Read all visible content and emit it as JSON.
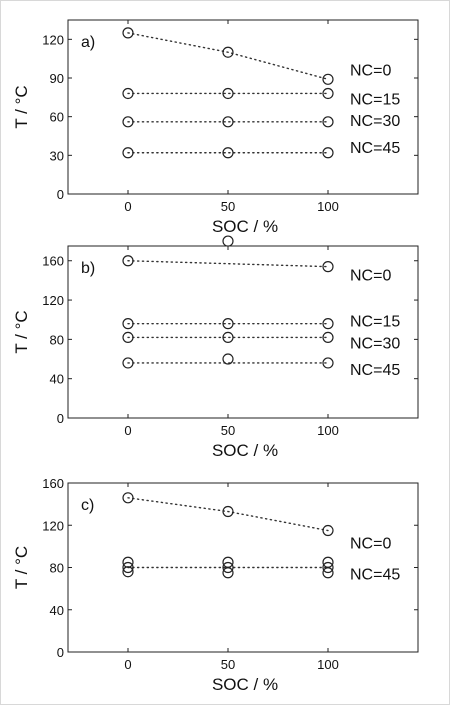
{
  "chart_data": [
    {
      "type": "scatter",
      "panel_label": "a)",
      "xlabel": "SOC / %",
      "ylabel": "T / °C",
      "xticks": [
        0,
        50,
        100
      ],
      "yticks": [
        0,
        30,
        60,
        90,
        120
      ],
      "xlim": [
        -30,
        145
      ],
      "ylim": [
        0,
        135
      ],
      "series": [
        {
          "name": "NC=0",
          "x": [
            0,
            50,
            100
          ],
          "y": [
            125,
            110,
            89
          ]
        },
        {
          "name": "NC=15",
          "x": [
            0,
            50,
            100
          ],
          "y": [
            78,
            78,
            78
          ]
        },
        {
          "name": "NC=30",
          "x": [
            0,
            50,
            100
          ],
          "y": [
            56,
            56,
            56
          ]
        },
        {
          "name": "NC=45",
          "x": [
            0,
            50,
            100
          ],
          "y": [
            32,
            32,
            32
          ]
        }
      ]
    },
    {
      "type": "scatter",
      "panel_label": "b)",
      "xlabel": "SOC / %",
      "ylabel": "T / °C",
      "xticks": [
        0,
        50,
        100
      ],
      "yticks": [
        0,
        40,
        80,
        120,
        160
      ],
      "xlim": [
        -30,
        145
      ],
      "ylim": [
        0,
        175
      ],
      "series": [
        {
          "name": "NC=0",
          "x": [
            0,
            50,
            100
          ],
          "y": [
            160,
            180,
            154
          ],
          "line_y": [
            160,
            157,
            154
          ]
        },
        {
          "name": "NC=15",
          "x": [
            0,
            50,
            100
          ],
          "y": [
            96,
            96,
            96
          ]
        },
        {
          "name": "NC=30",
          "x": [
            0,
            50,
            100
          ],
          "y": [
            82,
            82,
            82
          ]
        },
        {
          "name": "NC=45",
          "x": [
            0,
            50,
            100
          ],
          "y": [
            56,
            60,
            56
          ],
          "line_y": [
            56,
            56,
            56
          ]
        }
      ]
    },
    {
      "type": "scatter",
      "panel_label": "c)",
      "xlabel": "SOC / %",
      "ylabel": "T / °C",
      "xticks": [
        0,
        50,
        100
      ],
      "yticks": [
        0,
        40,
        80,
        120,
        160
      ],
      "xlim": [
        -30,
        145
      ],
      "ylim": [
        0,
        160
      ],
      "series": [
        {
          "name": "NC=0",
          "x": [
            0,
            50,
            100
          ],
          "y": [
            146,
            133,
            115
          ]
        },
        {
          "name": "NC=45",
          "x": [
            0,
            0,
            0,
            50,
            50,
            50,
            100,
            100,
            100
          ],
          "y": [
            85,
            80,
            76,
            85,
            80,
            75,
            85,
            80,
            75
          ],
          "line_y": [
            80,
            80,
            80
          ]
        }
      ]
    }
  ]
}
